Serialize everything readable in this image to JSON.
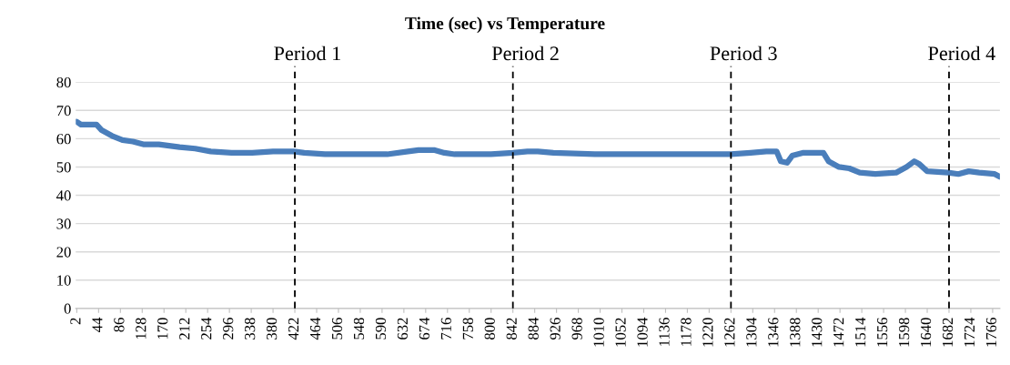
{
  "chart_data": {
    "type": "line",
    "title": "Time (sec) vs Temperature",
    "x": [
      2,
      10,
      40,
      50,
      70,
      90,
      110,
      130,
      160,
      200,
      230,
      260,
      300,
      340,
      380,
      420,
      440,
      480,
      550,
      600,
      640,
      660,
      690,
      710,
      730,
      800,
      842,
      870,
      890,
      920,
      1000,
      1100,
      1200,
      1262,
      1300,
      1330,
      1350,
      1358,
      1370,
      1380,
      1400,
      1440,
      1450,
      1470,
      1490,
      1510,
      1540,
      1580,
      1600,
      1615,
      1625,
      1640,
      1680,
      1700,
      1720,
      1740,
      1770,
      1780
    ],
    "series": [
      {
        "color": "#4a7ebb",
        "values": [
          66,
          65,
          65,
          63,
          61,
          59.5,
          59,
          58,
          58,
          57,
          56.5,
          55.5,
          55,
          55,
          55.5,
          55.5,
          55,
          54.5,
          54.5,
          54.5,
          55.5,
          56,
          56,
          55,
          54.5,
          54.5,
          55,
          55.5,
          55.5,
          55,
          54.5,
          54.5,
          54.5,
          54.5,
          55,
          55.5,
          55.5,
          52,
          51.5,
          54,
          55,
          55,
          52,
          50,
          49.5,
          48,
          47.5,
          48,
          50,
          52,
          51,
          48.5,
          48,
          47.5,
          48.5,
          48,
          47.5,
          46.5
        ]
      }
    ],
    "xlim": [
      0,
      1780
    ],
    "xticks": [
      2,
      44,
      86,
      128,
      170,
      212,
      254,
      296,
      338,
      380,
      422,
      464,
      506,
      548,
      590,
      632,
      674,
      716,
      758,
      800,
      842,
      884,
      926,
      968,
      1010,
      1052,
      1094,
      1136,
      1178,
      1220,
      1262,
      1304,
      1346,
      1388,
      1430,
      1472,
      1514,
      1556,
      1598,
      1640,
      1682,
      1724,
      1766
    ],
    "ylim": [
      0,
      80
    ],
    "yticks": [
      0,
      10,
      20,
      30,
      40,
      50,
      60,
      70,
      80
    ],
    "grid": "y",
    "marker": "none",
    "line_style": "solid",
    "ref_lines": [
      {
        "axis": "x",
        "value": 422,
        "label": "Period 1",
        "color": "#000000",
        "line_style": "dashed"
      },
      {
        "axis": "x",
        "value": 842,
        "label": "Period 2",
        "color": "#000000",
        "line_style": "dashed"
      },
      {
        "axis": "x",
        "value": 1262,
        "label": "Period 3",
        "color": "#000000",
        "line_style": "dashed"
      },
      {
        "axis": "x",
        "value": 1682,
        "label": "Period 4",
        "color": "#000000",
        "line_style": "dashed"
      }
    ]
  }
}
